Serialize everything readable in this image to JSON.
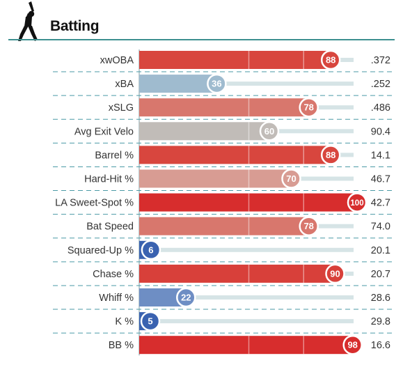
{
  "header": {
    "title": "Batting",
    "icon": "batter-silhouette-icon"
  },
  "chart_data": {
    "type": "bar",
    "orientation": "horizontal",
    "title": "Batting",
    "xlim": [
      0,
      100
    ],
    "metrics": [
      {
        "name": "xwOBA",
        "percentile": 88,
        "value": ".372",
        "color": "#d8463e"
      },
      {
        "name": "xBA",
        "percentile": 36,
        "value": ".252",
        "color": "#9fbbcf"
      },
      {
        "name": "xSLG",
        "percentile": 78,
        "value": ".486",
        "color": "#d8776d"
      },
      {
        "name": "Avg Exit Velo",
        "percentile": 60,
        "value": "90.4",
        "color": "#c1bcb8"
      },
      {
        "name": "Barrel %",
        "percentile": 88,
        "value": "14.1",
        "color": "#d8463e"
      },
      {
        "name": "Hard-Hit %",
        "percentile": 70,
        "value": "46.7",
        "color": "#d89c93"
      },
      {
        "name": "LA Sweet-Spot %",
        "percentile": 100,
        "value": "42.7",
        "color": "#d72d2d"
      },
      {
        "name": "Bat Speed",
        "percentile": 78,
        "value": "74.0",
        "color": "#d8776d"
      },
      {
        "name": "Squared-Up %",
        "percentile": 6,
        "value": "20.1",
        "color": "#3a62b0"
      },
      {
        "name": "Chase %",
        "percentile": 90,
        "value": "20.7",
        "color": "#d8403a"
      },
      {
        "name": "Whiff %",
        "percentile": 22,
        "value": "28.6",
        "color": "#6e8ec4"
      },
      {
        "name": "K %",
        "percentile": 5,
        "value": "29.8",
        "color": "#3a62b0"
      },
      {
        "name": "BB %",
        "percentile": 98,
        "value": "16.6",
        "color": "#d72d2d"
      }
    ],
    "colors": {
      "track": "#d6e4e6",
      "divider": "#4a9aa6",
      "axis_line": "#7a9aa0",
      "header_rule": "#3d8f8f"
    }
  }
}
